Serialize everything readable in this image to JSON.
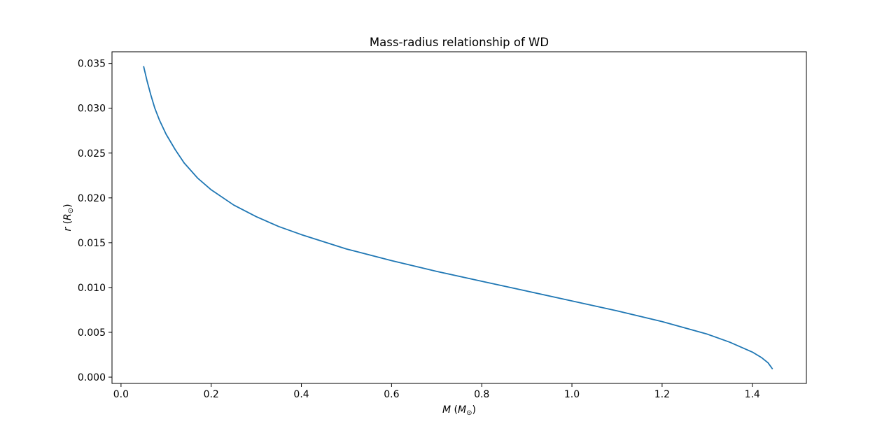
{
  "chart_data": {
    "type": "line",
    "title": "Mass-radius relationship of WD",
    "xlabel": {
      "italic": "M",
      "rest": " (",
      "sub_italic": "M",
      "sub": "⊙",
      "close": ")"
    },
    "ylabel": {
      "italic": "r",
      "rest": " (",
      "sub_italic": "R",
      "sub": "⊙",
      "close": ")"
    },
    "xlim": [
      -0.02,
      1.52
    ],
    "ylim": [
      -0.0007,
      0.0363
    ],
    "xticks": [
      0.0,
      0.2,
      0.4,
      0.6,
      0.8,
      1.0,
      1.2,
      1.4
    ],
    "xtick_labels": [
      "0.0",
      "0.2",
      "0.4",
      "0.6",
      "0.8",
      "1.0",
      "1.2",
      "1.4"
    ],
    "yticks": [
      0.0,
      0.005,
      0.01,
      0.015,
      0.02,
      0.025,
      0.03,
      0.035
    ],
    "ytick_labels": [
      "0.000",
      "0.005",
      "0.010",
      "0.015",
      "0.020",
      "0.025",
      "0.030",
      "0.035"
    ],
    "grid": false,
    "line_color": "#1f77b4",
    "series": [
      {
        "x": [
          0.05,
          0.058,
          0.066,
          0.075,
          0.085,
          0.1,
          0.12,
          0.14,
          0.17,
          0.2,
          0.25,
          0.3,
          0.35,
          0.4,
          0.5,
          0.6,
          0.7,
          0.8,
          0.9,
          1.0,
          1.1,
          1.2,
          1.3,
          1.35,
          1.4,
          1.42,
          1.435,
          1.445
        ],
        "y": [
          0.0347,
          0.033,
          0.0315,
          0.03,
          0.0287,
          0.0271,
          0.0254,
          0.0239,
          0.0222,
          0.0209,
          0.0192,
          0.0179,
          0.0168,
          0.0159,
          0.0143,
          0.013,
          0.0118,
          0.0107,
          0.0096,
          0.0085,
          0.0074,
          0.0062,
          0.0048,
          0.0039,
          0.0028,
          0.0022,
          0.0016,
          0.0009
        ]
      }
    ]
  }
}
